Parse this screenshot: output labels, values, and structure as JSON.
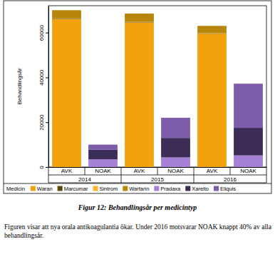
{
  "chart_data": {
    "type": "bar",
    "stacked": true,
    "title": "Figur 12: Behandlingsår per medicintyp",
    "caption": "Figuren visar att nya orala antikoagulantia ökar.  Under 2016 motsvarar NOAK knappt 40% av alla behandlingsår.",
    "y_label": "Behandlingsår",
    "categories": [
      "AVK",
      "NOAK",
      "AVK",
      "NOAK",
      "AVK",
      "NOAK"
    ],
    "x_groups": [
      "2014",
      "2015",
      "2016"
    ],
    "legend_title": "Medicin",
    "legend": "bottom",
    "grid": false,
    "ylim": [
      0,
      72000
    ],
    "yticks": [
      0,
      20000,
      40000,
      60000
    ],
    "series": [
      {
        "name": "Waran",
        "color": "#f2a20c",
        "values": [
          66000,
          0,
          64500,
          0,
          59500,
          0
        ]
      },
      {
        "name": "Marcumar",
        "color": "#5a4a05",
        "values": [
          200,
          0,
          150,
          0,
          100,
          0
        ]
      },
      {
        "name": "Sintrom",
        "color": "#f7b733",
        "values": [
          100,
          0,
          100,
          0,
          100,
          0
        ]
      },
      {
        "name": "Warfarin",
        "color": "#b8860b",
        "values": [
          3700,
          0,
          3750,
          0,
          3300,
          0
        ]
      },
      {
        "name": "Pradaxa",
        "color": "#a780d8",
        "values": [
          0,
          3500,
          0,
          4300,
          0,
          5200
        ]
      },
      {
        "name": "Xarelto",
        "color": "#3b2d55",
        "values": [
          0,
          4200,
          0,
          8700,
          0,
          12300
        ]
      },
      {
        "name": "Eliquis",
        "color": "#7d5cab",
        "values": [
          0,
          2300,
          0,
          9000,
          0,
          19700
        ]
      }
    ]
  }
}
